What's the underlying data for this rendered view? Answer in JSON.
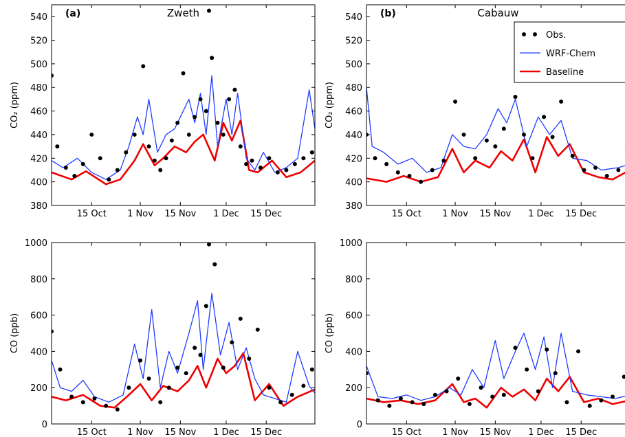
{
  "colors": {
    "obs": "#000000",
    "model": "#1f3cff",
    "baseline": "#ee0000",
    "axis": "#000000"
  },
  "legend": {
    "items": [
      {
        "label": "Obs.",
        "kind": "obs"
      },
      {
        "label": "WRF-Chem",
        "kind": "model"
      },
      {
        "label": "Baseline",
        "kind": "baseline"
      }
    ]
  },
  "chart_data": [
    {
      "type": "line",
      "panel_label": "(a)",
      "title": "Zweth",
      "ylabel": "CO₂ (ppm)",
      "xlabel": "",
      "ylim": [
        380,
        550
      ],
      "yticks": [
        380,
        400,
        420,
        440,
        460,
        480,
        500,
        520,
        540
      ],
      "xlim": [
        "2016-10-01",
        "2017-01-01"
      ],
      "xticks": [
        {
          "label": "15 Oct",
          "date": "2016-10-15"
        },
        {
          "label": "1 Nov",
          "date": "2016-11-01"
        },
        {
          "label": "15 Nov",
          "date": "2016-11-15"
        },
        {
          "label": "1 Dec",
          "date": "2016-12-01"
        },
        {
          "label": "15 Dec",
          "date": "2016-12-15"
        }
      ],
      "series": [
        {
          "name": "Baseline",
          "kind": "baseline",
          "x": [
            "2016-10-01",
            "2016-10-08",
            "2016-10-13",
            "2016-10-20",
            "2016-10-25",
            "2016-10-30",
            "2016-11-02",
            "2016-11-06",
            "2016-11-09",
            "2016-11-13",
            "2016-11-17",
            "2016-11-20",
            "2016-11-23",
            "2016-11-27",
            "2016-11-30",
            "2016-12-03",
            "2016-12-06",
            "2016-12-09",
            "2016-12-12",
            "2016-12-17",
            "2016-12-22",
            "2016-12-27",
            "2017-01-01"
          ],
          "y": [
            408,
            402,
            409,
            398,
            402,
            418,
            432,
            414,
            420,
            430,
            425,
            434,
            440,
            418,
            450,
            435,
            452,
            410,
            408,
            418,
            404,
            408,
            418
          ]
        },
        {
          "name": "WRF-Chem",
          "kind": "model",
          "x": [
            "2016-10-01",
            "2016-10-05",
            "2016-10-10",
            "2016-10-15",
            "2016-10-20",
            "2016-10-25",
            "2016-10-28",
            "2016-10-31",
            "2016-11-02",
            "2016-11-04",
            "2016-11-07",
            "2016-11-10",
            "2016-11-13",
            "2016-11-15",
            "2016-11-18",
            "2016-11-20",
            "2016-11-22",
            "2016-11-24",
            "2016-11-26",
            "2016-11-28",
            "2016-12-01",
            "2016-12-03",
            "2016-12-05",
            "2016-12-08",
            "2016-12-11",
            "2016-12-14",
            "2016-12-18",
            "2016-12-22",
            "2016-12-26",
            "2016-12-30",
            "2017-01-01"
          ],
          "y": [
            418,
            412,
            420,
            408,
            402,
            410,
            430,
            455,
            440,
            470,
            425,
            440,
            445,
            455,
            470,
            450,
            475,
            440,
            490,
            430,
            470,
            440,
            475,
            420,
            410,
            425,
            408,
            412,
            420,
            478,
            445
          ]
        },
        {
          "name": "Obs.",
          "kind": "obs",
          "x": [
            "2016-10-01",
            "2016-10-03",
            "2016-10-06",
            "2016-10-09",
            "2016-10-12",
            "2016-10-15",
            "2016-10-18",
            "2016-10-21",
            "2016-10-24",
            "2016-10-27",
            "2016-10-30",
            "2016-11-02",
            "2016-11-04",
            "2016-11-06",
            "2016-11-08",
            "2016-11-10",
            "2016-11-12",
            "2016-11-14",
            "2016-11-16",
            "2016-11-18",
            "2016-11-20",
            "2016-11-22",
            "2016-11-24",
            "2016-11-25",
            "2016-11-26",
            "2016-11-28",
            "2016-11-30",
            "2016-12-02",
            "2016-12-04",
            "2016-12-06",
            "2016-12-08",
            "2016-12-10",
            "2016-12-13",
            "2016-12-16",
            "2016-12-19",
            "2016-12-22",
            "2016-12-25",
            "2016-12-28",
            "2016-12-31"
          ],
          "y": [
            490,
            430,
            412,
            405,
            415,
            440,
            420,
            402,
            410,
            425,
            440,
            498,
            430,
            418,
            410,
            420,
            435,
            450,
            492,
            440,
            455,
            470,
            460,
            545,
            505,
            450,
            440,
            470,
            478,
            430,
            415,
            418,
            412,
            420,
            408,
            410,
            415,
            420,
            425
          ]
        }
      ]
    },
    {
      "type": "line",
      "panel_label": "(b)",
      "title": "Cabauw",
      "ylabel": "CO₂ (ppm)",
      "xlabel": "",
      "ylim": [
        380,
        550
      ],
      "yticks": [
        380,
        400,
        420,
        440,
        460,
        480,
        500,
        520,
        540
      ],
      "xlim": [
        "2016-10-01",
        "2017-01-01"
      ],
      "xticks": [
        {
          "label": "15 Oct",
          "date": "2016-10-15"
        },
        {
          "label": "1 Nov",
          "date": "2016-11-01"
        },
        {
          "label": "15 Nov",
          "date": "2016-11-15"
        },
        {
          "label": "1 Dec",
          "date": "2016-12-01"
        },
        {
          "label": "15 Dec",
          "date": "2016-12-15"
        }
      ],
      "series": [
        {
          "name": "Baseline",
          "kind": "baseline",
          "x": [
            "2016-10-01",
            "2016-10-08",
            "2016-10-14",
            "2016-10-20",
            "2016-10-26",
            "2016-10-31",
            "2016-11-04",
            "2016-11-08",
            "2016-11-13",
            "2016-11-17",
            "2016-11-21",
            "2016-11-25",
            "2016-11-29",
            "2016-12-03",
            "2016-12-07",
            "2016-12-11",
            "2016-12-16",
            "2016-12-21",
            "2016-12-26",
            "2017-01-01"
          ],
          "y": [
            403,
            400,
            405,
            400,
            404,
            428,
            408,
            418,
            412,
            426,
            418,
            436,
            408,
            438,
            422,
            432,
            408,
            404,
            402,
            410
          ]
        },
        {
          "name": "WRF-Chem",
          "kind": "model",
          "x": [
            "2016-10-01",
            "2016-10-03",
            "2016-10-07",
            "2016-10-12",
            "2016-10-17",
            "2016-10-22",
            "2016-10-27",
            "2016-10-31",
            "2016-11-04",
            "2016-11-08",
            "2016-11-12",
            "2016-11-16",
            "2016-11-19",
            "2016-11-22",
            "2016-11-26",
            "2016-11-30",
            "2016-12-04",
            "2016-12-08",
            "2016-12-12",
            "2016-12-17",
            "2016-12-22",
            "2016-12-28",
            "2017-01-01"
          ],
          "y": [
            480,
            430,
            425,
            415,
            420,
            408,
            412,
            440,
            430,
            428,
            440,
            462,
            450,
            470,
            430,
            455,
            440,
            452,
            420,
            418,
            410,
            412,
            415
          ]
        },
        {
          "name": "Obs.",
          "kind": "obs",
          "x": [
            "2016-10-01",
            "2016-10-04",
            "2016-10-08",
            "2016-10-12",
            "2016-10-16",
            "2016-10-20",
            "2016-10-24",
            "2016-10-28",
            "2016-11-01",
            "2016-11-04",
            "2016-11-08",
            "2016-11-12",
            "2016-11-15",
            "2016-11-18",
            "2016-11-22",
            "2016-11-25",
            "2016-11-28",
            "2016-12-02",
            "2016-12-05",
            "2016-12-08",
            "2016-12-12",
            "2016-12-16",
            "2016-12-20",
            "2016-12-24",
            "2016-12-28",
            "2016-12-31"
          ],
          "y": [
            440,
            420,
            415,
            408,
            405,
            400,
            410,
            418,
            468,
            440,
            420,
            435,
            430,
            445,
            472,
            440,
            420,
            455,
            438,
            468,
            422,
            410,
            412,
            405,
            410,
            430
          ]
        }
      ]
    },
    {
      "type": "line",
      "panel_label": "",
      "title": "",
      "ylabel": "CO (ppb)",
      "xlabel": "",
      "ylim": [
        0,
        1000
      ],
      "yticks": [
        0,
        200,
        400,
        600,
        800,
        1000
      ],
      "xlim": [
        "2016-10-01",
        "2017-01-01"
      ],
      "xticks": [
        {
          "label": "15 Oct",
          "date": "2016-10-15"
        },
        {
          "label": "1 Nov",
          "date": "2016-11-01"
        },
        {
          "label": "15 Nov",
          "date": "2016-11-15"
        },
        {
          "label": "1 Dec",
          "date": "2016-12-01"
        },
        {
          "label": "15 Dec",
          "date": "2016-12-15"
        }
      ],
      "series": [
        {
          "name": "Baseline",
          "kind": "baseline",
          "x": [
            "2016-10-01",
            "2016-10-06",
            "2016-10-12",
            "2016-10-18",
            "2016-10-23",
            "2016-10-28",
            "2016-11-01",
            "2016-11-05",
            "2016-11-09",
            "2016-11-14",
            "2016-11-18",
            "2016-11-21",
            "2016-11-24",
            "2016-11-28",
            "2016-12-01",
            "2016-12-04",
            "2016-12-07",
            "2016-12-11",
            "2016-12-16",
            "2016-12-21",
            "2016-12-26",
            "2017-01-01"
          ],
          "y": [
            150,
            130,
            160,
            100,
            90,
            160,
            220,
            130,
            210,
            180,
            240,
            320,
            200,
            360,
            280,
            320,
            390,
            130,
            220,
            100,
            150,
            190
          ]
        },
        {
          "name": "WRF-Chem",
          "kind": "model",
          "x": [
            "2016-10-01",
            "2016-10-04",
            "2016-10-08",
            "2016-10-12",
            "2016-10-16",
            "2016-10-21",
            "2016-10-26",
            "2016-10-30",
            "2016-11-02",
            "2016-11-05",
            "2016-11-08",
            "2016-11-11",
            "2016-11-14",
            "2016-11-18",
            "2016-11-21",
            "2016-11-23",
            "2016-11-26",
            "2016-11-29",
            "2016-12-02",
            "2016-12-05",
            "2016-12-08",
            "2016-12-11",
            "2016-12-14",
            "2016-12-18",
            "2016-12-22",
            "2016-12-26",
            "2016-12-30",
            "2017-01-01"
          ],
          "y": [
            350,
            200,
            180,
            240,
            150,
            120,
            160,
            440,
            250,
            630,
            200,
            400,
            280,
            500,
            680,
            300,
            720,
            380,
            560,
            300,
            420,
            250,
            160,
            140,
            120,
            400,
            210,
            170
          ]
        },
        {
          "name": "Obs.",
          "kind": "obs",
          "x": [
            "2016-10-01",
            "2016-10-04",
            "2016-10-08",
            "2016-10-12",
            "2016-10-16",
            "2016-10-20",
            "2016-10-24",
            "2016-10-28",
            "2016-11-01",
            "2016-11-04",
            "2016-11-08",
            "2016-11-11",
            "2016-11-14",
            "2016-11-17",
            "2016-11-20",
            "2016-11-22",
            "2016-11-24",
            "2016-11-25",
            "2016-11-27",
            "2016-11-30",
            "2016-12-03",
            "2016-12-06",
            "2016-12-09",
            "2016-12-12",
            "2016-12-16",
            "2016-12-20",
            "2016-12-24",
            "2016-12-28",
            "2016-12-31"
          ],
          "y": [
            510,
            300,
            150,
            120,
            140,
            100,
            80,
            200,
            350,
            250,
            120,
            200,
            310,
            280,
            420,
            380,
            650,
            990,
            880,
            310,
            450,
            580,
            360,
            520,
            200,
            120,
            160,
            210,
            300
          ]
        }
      ]
    },
    {
      "type": "line",
      "panel_label": "",
      "title": "",
      "ylabel": "CO (ppb)",
      "xlabel": "",
      "ylim": [
        0,
        1000
      ],
      "yticks": [
        0,
        200,
        400,
        600,
        800,
        1000
      ],
      "xlim": [
        "2016-10-01",
        "2017-01-01"
      ],
      "xticks": [
        {
          "label": "15 Oct",
          "date": "2016-10-15"
        },
        {
          "label": "1 Nov",
          "date": "2016-11-01"
        },
        {
          "label": "15 Nov",
          "date": "2016-11-15"
        },
        {
          "label": "1 Dec",
          "date": "2016-12-01"
        },
        {
          "label": "15 Dec",
          "date": "2016-12-15"
        }
      ],
      "series": [
        {
          "name": "Baseline",
          "kind": "baseline",
          "x": [
            "2016-10-01",
            "2016-10-07",
            "2016-10-13",
            "2016-10-19",
            "2016-10-25",
            "2016-10-31",
            "2016-11-04",
            "2016-11-08",
            "2016-11-12",
            "2016-11-17",
            "2016-11-21",
            "2016-11-25",
            "2016-11-29",
            "2016-12-03",
            "2016-12-07",
            "2016-12-11",
            "2016-12-16",
            "2016-12-21",
            "2016-12-26",
            "2017-01-01"
          ],
          "y": [
            140,
            120,
            130,
            110,
            130,
            220,
            120,
            140,
            90,
            200,
            150,
            190,
            130,
            250,
            180,
            260,
            120,
            140,
            110,
            130
          ]
        },
        {
          "name": "WRF-Chem",
          "kind": "model",
          "x": [
            "2016-10-01",
            "2016-10-05",
            "2016-10-10",
            "2016-10-15",
            "2016-10-20",
            "2016-10-25",
            "2016-10-30",
            "2016-11-03",
            "2016-11-07",
            "2016-11-11",
            "2016-11-15",
            "2016-11-18",
            "2016-11-22",
            "2016-11-25",
            "2016-11-29",
            "2016-12-02",
            "2016-12-05",
            "2016-12-08",
            "2016-12-12",
            "2016-12-17",
            "2016-12-22",
            "2016-12-27",
            "2017-01-01"
          ],
          "y": [
            320,
            150,
            140,
            160,
            130,
            150,
            200,
            160,
            300,
            200,
            460,
            250,
            400,
            500,
            300,
            480,
            200,
            500,
            180,
            160,
            150,
            140,
            160
          ]
        },
        {
          "name": "Obs.",
          "kind": "obs",
          "x": [
            "2016-10-01",
            "2016-10-05",
            "2016-10-09",
            "2016-10-13",
            "2016-10-17",
            "2016-10-21",
            "2016-10-25",
            "2016-10-29",
            "2016-11-02",
            "2016-11-06",
            "2016-11-10",
            "2016-11-14",
            "2016-11-18",
            "2016-11-22",
            "2016-11-26",
            "2016-11-30",
            "2016-12-03",
            "2016-12-06",
            "2016-12-10",
            "2016-12-14",
            "2016-12-18",
            "2016-12-22",
            "2016-12-26",
            "2016-12-30"
          ],
          "y": [
            280,
            130,
            100,
            140,
            120,
            110,
            160,
            180,
            250,
            110,
            200,
            150,
            160,
            420,
            300,
            180,
            410,
            280,
            120,
            400,
            100,
            130,
            150,
            260
          ]
        }
      ]
    }
  ]
}
